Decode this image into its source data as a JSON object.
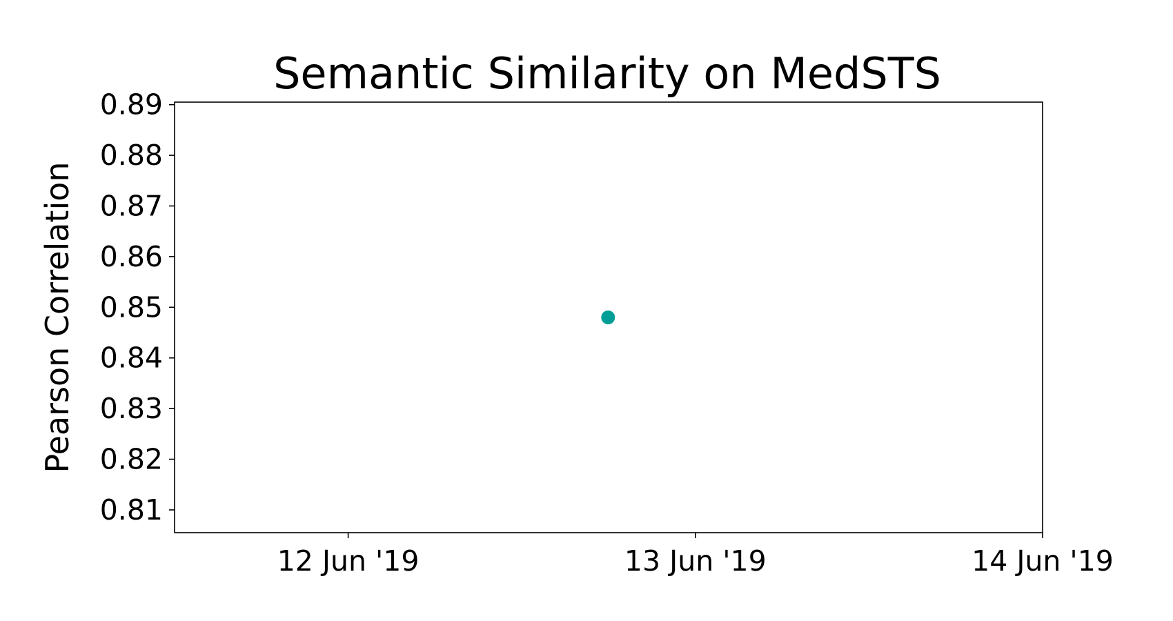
{
  "chart_data": {
    "type": "scatter",
    "title": "Semantic Similarity on MedSTS",
    "xlabel": "",
    "ylabel": "Pearson Correlation",
    "x_axis": {
      "type": "date",
      "range": [
        "2019-06-11T12:00",
        "2019-06-14T00:00"
      ],
      "ticks": [
        {
          "value": "2019-06-12",
          "label": "12 Jun '19"
        },
        {
          "value": "2019-06-13",
          "label": "13 Jun '19"
        },
        {
          "value": "2019-06-14",
          "label": "14 Jun '19"
        }
      ]
    },
    "y_axis": {
      "range": [
        0.8055,
        0.8905
      ],
      "ticks": [
        {
          "value": 0.81,
          "label": "0.81"
        },
        {
          "value": 0.82,
          "label": "0.82"
        },
        {
          "value": 0.83,
          "label": "0.83"
        },
        {
          "value": 0.84,
          "label": "0.84"
        },
        {
          "value": 0.85,
          "label": "0.85"
        },
        {
          "value": 0.86,
          "label": "0.86"
        },
        {
          "value": 0.87,
          "label": "0.87"
        },
        {
          "value": 0.88,
          "label": "0.88"
        },
        {
          "value": 0.89,
          "label": "0.89"
        }
      ]
    },
    "series": [
      {
        "color": "#009e96",
        "points": [
          {
            "x": "2019-06-12T17:58",
            "y": 0.848
          }
        ]
      }
    ],
    "grid": false,
    "legend": "none"
  }
}
